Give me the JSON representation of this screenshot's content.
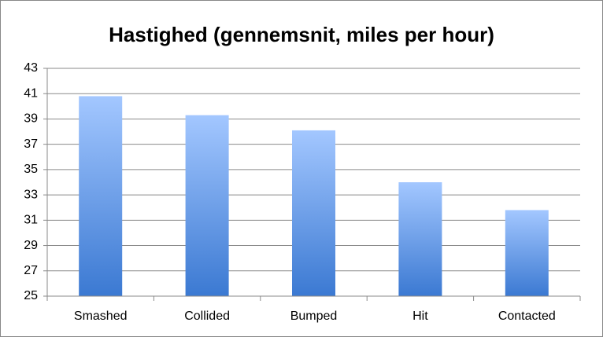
{
  "chart_data": {
    "type": "bar",
    "title": "Hastighed (gennemsnit, miles per hour)",
    "categories": [
      "Smashed",
      "Collided",
      "Bumped",
      "Hit",
      "Contacted"
    ],
    "values": [
      40.8,
      39.3,
      38.1,
      34.0,
      31.8
    ],
    "color": [
      "#a3c7ff",
      "#3b79d2"
    ],
    "ylim": [
      25,
      43
    ],
    "yticks": [
      25,
      27,
      29,
      31,
      33,
      35,
      37,
      39,
      41,
      43
    ],
    "grid": true
  }
}
